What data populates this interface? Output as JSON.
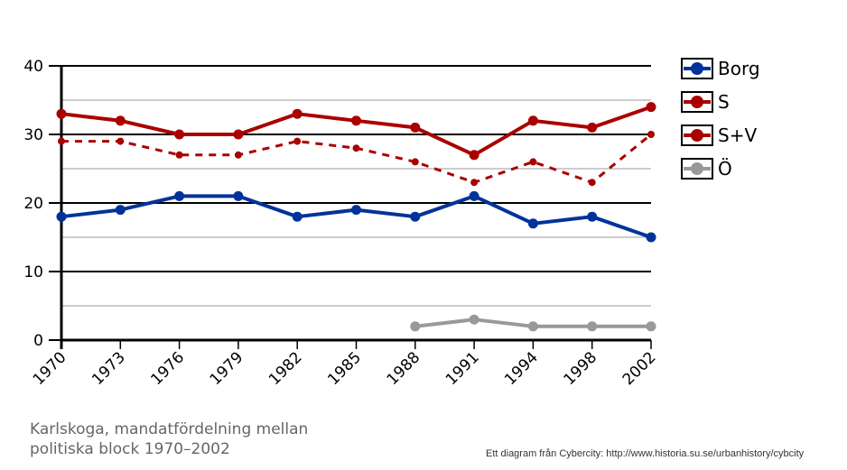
{
  "chart_data": {
    "type": "line",
    "title": "Karlskoga, mandatfördelning mellan politiska block 1970-2002",
    "categories": [
      "1970",
      "1973",
      "1976",
      "1979",
      "1982",
      "1985",
      "1988",
      "1991",
      "1994",
      "1998",
      "2002"
    ],
    "ylim": [
      0,
      40
    ],
    "yticks": [
      0,
      10,
      20,
      30,
      40
    ],
    "minor_gridlines": [
      5,
      15,
      25,
      35
    ],
    "grid": true,
    "legend_position": "right",
    "series": [
      {
        "name": "Borg",
        "color": "#003399",
        "dashed": false,
        "values": [
          18,
          19,
          21,
          21,
          18,
          19,
          18,
          21,
          17,
          18,
          15
        ]
      },
      {
        "name": "S",
        "color": "#aa0000",
        "dashed": true,
        "values": [
          29,
          29,
          27,
          27,
          29,
          28,
          26,
          23,
          26,
          23,
          30
        ]
      },
      {
        "name": "S+V",
        "color": "#aa0000",
        "dashed": false,
        "values": [
          33,
          32,
          30,
          30,
          33,
          32,
          31,
          27,
          32,
          31,
          34
        ]
      },
      {
        "name": "Ö",
        "color": "#999999",
        "dashed": false,
        "values": [
          null,
          null,
          null,
          null,
          null,
          null,
          2,
          3,
          2,
          2,
          2
        ]
      }
    ]
  },
  "caption_line1": "Karlskoga, mandatfördelning mellan",
  "caption_line2": "politiska block 1970–2002",
  "credit": "Ett diagram från Cybercity: http://www.historia.su.se/urbanhistory/cybcity"
}
